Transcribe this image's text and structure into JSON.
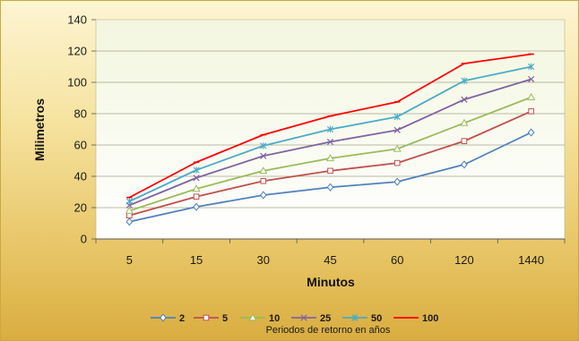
{
  "chart_data": {
    "type": "line",
    "xlabel": "Minutos",
    "ylabel": "Milimetros",
    "legend_title": "Periodos de retorno en años",
    "legend_position": "bottom",
    "grid": "horizontal",
    "categories": [
      "5",
      "15",
      "30",
      "45",
      "60",
      "120",
      "1440"
    ],
    "ylim": [
      0,
      140
    ],
    "yticks": [
      0,
      20,
      40,
      60,
      80,
      100,
      120,
      140
    ],
    "series": [
      {
        "name": "2",
        "color": "#4f81bd",
        "marker": "diamond",
        "values": [
          11,
          20.5,
          28,
          33,
          36.5,
          47.5,
          68
        ]
      },
      {
        "name": "5",
        "color": "#c0504d",
        "marker": "square",
        "values": [
          15,
          27,
          37,
          43.5,
          48.5,
          62.5,
          81.5
        ]
      },
      {
        "name": "10",
        "color": "#9bbb59",
        "marker": "triangle",
        "values": [
          18,
          32,
          43.5,
          51.5,
          57.5,
          74,
          90.5
        ]
      },
      {
        "name": "25",
        "color": "#8064a2",
        "marker": "x",
        "values": [
          21.5,
          39,
          53,
          62,
          69.5,
          89,
          102
        ]
      },
      {
        "name": "50",
        "color": "#4bacc6",
        "marker": "star",
        "values": [
          24,
          44,
          59.5,
          70,
          78,
          101,
          110
        ]
      },
      {
        "name": "100",
        "color": "#ff0000",
        "marker": "dash",
        "values": [
          26.5,
          49,
          66.5,
          78.5,
          87.5,
          112,
          118
        ]
      }
    ]
  }
}
